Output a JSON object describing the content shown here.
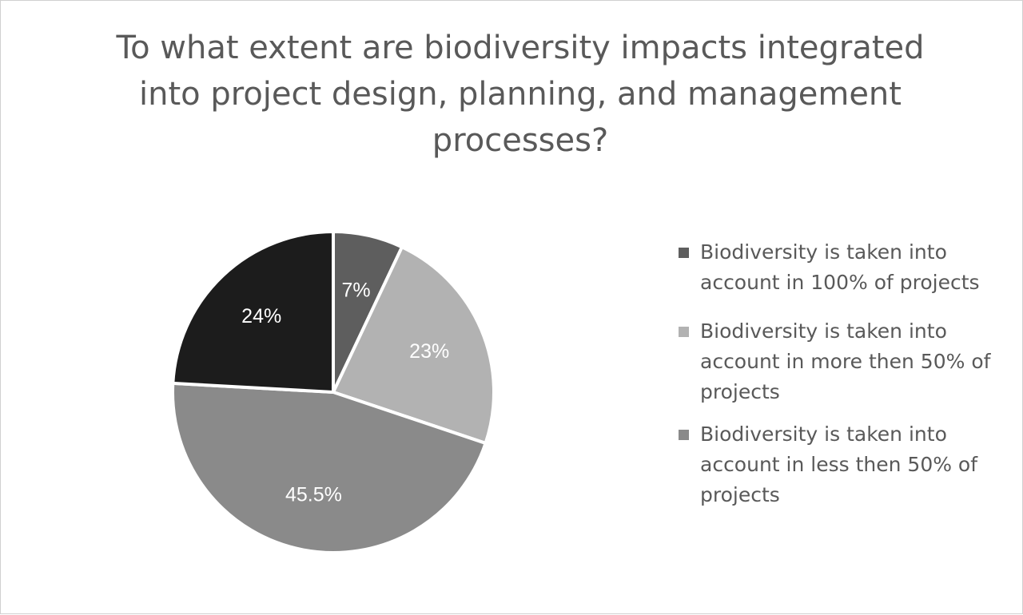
{
  "chart_data": {
    "type": "pie",
    "title": "To what extent are biodiversity impacts integrated into project design, planning, and management processes?",
    "slices": [
      {
        "label": "Biodiversity is taken into account in 100% of projects",
        "value": 7,
        "display": "7%",
        "color": "#5e5e5e"
      },
      {
        "label": "Biodiversity is taken into account in more then 50%  of projects",
        "value": 23,
        "display": "23%",
        "color": "#b2b2b2"
      },
      {
        "label": "Biodiversity is taken into account in less then 50% of projects",
        "value": 45.5,
        "display": "45.5%",
        "color": "#8a8a8a"
      },
      {
        "label": "",
        "value": 24,
        "display": "24%",
        "color": "#1c1c1c"
      }
    ],
    "legend_entries": [
      0,
      1,
      2
    ],
    "legend_position": "right",
    "start_angle": "12 o'clock",
    "direction": "clockwise"
  }
}
